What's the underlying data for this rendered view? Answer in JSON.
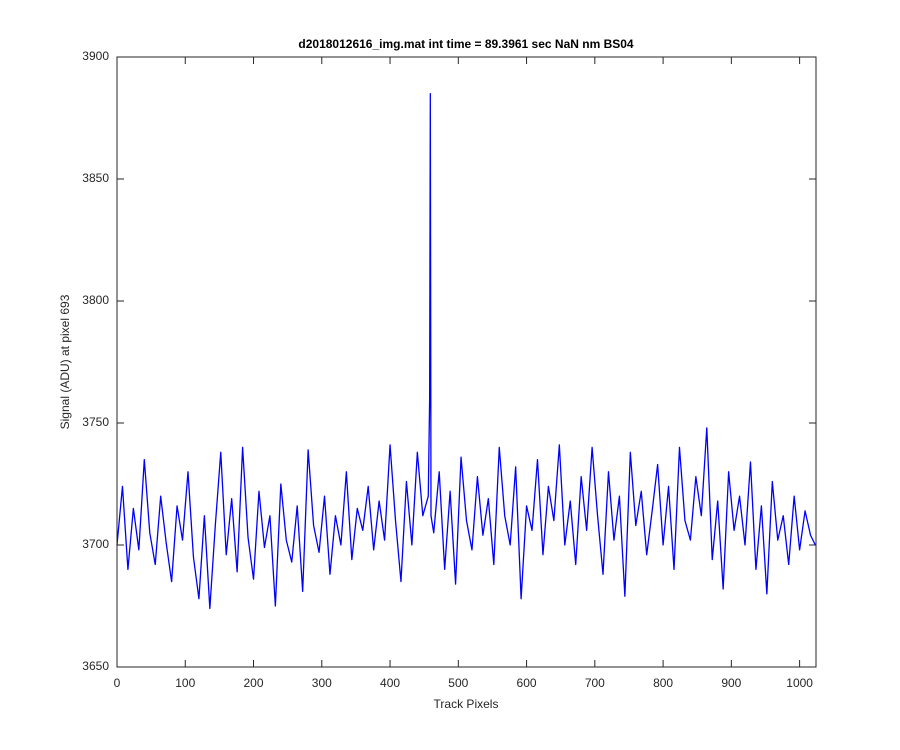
{
  "chart_data": {
    "type": "line",
    "title": "d2018012616_img.mat int time = 89.3961 sec  NaN nm BS04",
    "x_label": "Track Pixels",
    "y_label": "Signal (ADU) at pixel 693",
    "xlim": [
      0,
      1024
    ],
    "ylim": [
      3650,
      3900
    ],
    "xticks": [
      0,
      100,
      200,
      300,
      400,
      500,
      600,
      700,
      800,
      900,
      1000
    ],
    "yticks": [
      3650,
      3700,
      3750,
      3800,
      3850,
      3900
    ],
    "x": [
      0,
      8,
      16,
      24,
      32,
      40,
      48,
      56,
      64,
      72,
      80,
      88,
      96,
      104,
      112,
      120,
      128,
      136,
      144,
      152,
      160,
      168,
      176,
      184,
      192,
      200,
      208,
      216,
      224,
      232,
      240,
      248,
      256,
      264,
      272,
      280,
      288,
      296,
      304,
      312,
      320,
      328,
      336,
      344,
      352,
      360,
      368,
      376,
      384,
      392,
      400,
      408,
      416,
      424,
      432,
      440,
      448,
      456,
      458,
      459,
      460,
      464,
      472,
      480,
      488,
      496,
      504,
      512,
      520,
      528,
      536,
      544,
      552,
      560,
      568,
      576,
      584,
      592,
      600,
      608,
      616,
      624,
      632,
      640,
      648,
      656,
      664,
      672,
      680,
      688,
      696,
      704,
      712,
      720,
      728,
      736,
      744,
      752,
      760,
      768,
      776,
      784,
      792,
      800,
      808,
      816,
      824,
      832,
      840,
      848,
      856,
      864,
      872,
      880,
      888,
      896,
      904,
      912,
      920,
      928,
      936,
      944,
      952,
      960,
      968,
      976,
      984,
      992,
      1000,
      1008,
      1016,
      1023
    ],
    "series": [
      {
        "color": "#0000ff",
        "values": [
          3700,
          3724,
          3690,
          3715,
          3698,
          3735,
          3705,
          3692,
          3720,
          3701,
          3685,
          3716,
          3702,
          3730,
          3695,
          3678,
          3712,
          3674,
          3708,
          3738,
          3696,
          3719,
          3689,
          3740,
          3703,
          3686,
          3722,
          3699,
          3712,
          3675,
          3725,
          3702,
          3693,
          3716,
          3681,
          3739,
          3708,
          3697,
          3720,
          3688,
          3712,
          3700,
          3730,
          3694,
          3715,
          3706,
          3724,
          3698,
          3718,
          3702,
          3741,
          3710,
          3685,
          3726,
          3700,
          3738,
          3712,
          3720,
          3760,
          3885,
          3712,
          3705,
          3730,
          3690,
          3722,
          3684,
          3736,
          3710,
          3698,
          3728,
          3704,
          3719,
          3692,
          3740,
          3712,
          3700,
          3732,
          3678,
          3716,
          3706,
          3735,
          3696,
          3724,
          3710,
          3741,
          3700,
          3718,
          3692,
          3728,
          3706,
          3740,
          3712,
          3688,
          3730,
          3702,
          3720,
          3679,
          3738,
          3708,
          3722,
          3696,
          3714,
          3733,
          3700,
          3724,
          3690,
          3740,
          3710,
          3702,
          3728,
          3712,
          3748,
          3694,
          3718,
          3682,
          3730,
          3706,
          3720,
          3700,
          3734,
          3690,
          3716,
          3680,
          3726,
          3702,
          3712,
          3692,
          3720,
          3698,
          3714,
          3704,
          3700
        ]
      }
    ]
  }
}
